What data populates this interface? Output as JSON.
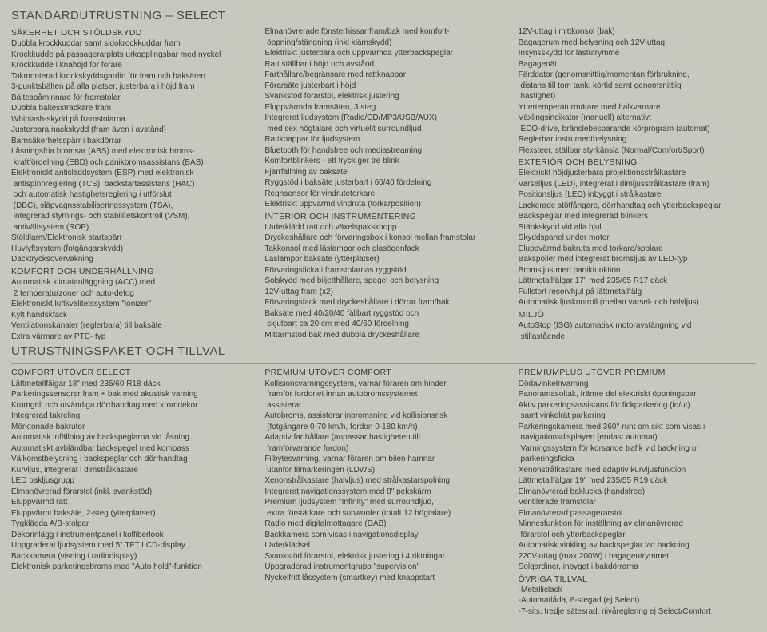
{
  "titles": {
    "main": "STANDARDUTRUSTNING – SELECT",
    "packages": "UTRUSTNINGSPAKET OCH TILLVAL"
  },
  "std": {
    "col1": {
      "h1": "SÄKERHET OCH STÖLDSKYDD",
      "i1": "Dubbla krockkuddar samt sidokrockkuddar fram",
      "i2": "Krockkudde på passagerarplats urkopplingsbar med nyckel",
      "i3": "Krockkudde i knähöjd för förare",
      "i4": "Takmonterad krockskyddsgardin för fram och baksäten",
      "i5": "3-punktsbälten på alla platser, justerbara i höjd fram",
      "i6": "Bältespåminnare för framstolar",
      "i7": "Dubbla bältessträckare fram",
      "i8": "Whiplash-skydd på framstolarna",
      "i9": "Justerbara nackskydd (fram även i avstånd)",
      "i10": "Barnsäkerhetsspärr i bakdörrar",
      "i11": "Låsningsfria bromsar (ABS) med elektronisk broms-\n kraftfördelning (EBD) och panikbromsassistans (BAS)",
      "i12": "Elektroniskt antisladdsystem (ESP) med elektronisk\n antispinnreglering (TCS), backstartassistans (HAC)\n och automatisk hastighetsreglering i utförslut\n (DBC), släpvagnsstabiliseringssystem (TSA),\n integrerad styrnings- och stabilitetskontroll (VSM),\n antivältsystem (ROP)",
      "i13": "Stöldlarm/Elektronisk startspärr",
      "i14": "Huvlyftsystem (fotgängarskydd)",
      "i15": "Däcktrycksövervakning",
      "h2": "KOMFORT OCH UNDERHÅLLNING",
      "i16": "Automatisk klimatanläggning (ACC) med\n 2 temperaturzoner och auto-defog",
      "i17": "Elektroniskt luftkvalitetssystem \"ionizer\"",
      "i18": "Kylt handskfack",
      "i19": "Ventilationskanaler (reglerbara) till baksäte",
      "i20": "Extra värmare av PTC- typ"
    },
    "col2": {
      "i1": "Elmanövrerade fönsterhissar fram/bak med komfort-\n öppning/stängning (inkl klämskydd)",
      "i2": "Elektriskt justerbara och uppvärmda ytterbackspeglar",
      "i3": "Ratt ställbar i höjd och avstånd",
      "i4": "Farthållare/begränsare med rattknappar",
      "i5": "Förarsäte justerbart i höjd",
      "i6": "Svankstöd förarstol, elektrisk justering",
      "i7": "Eluppvärmda framsäten, 3 steg",
      "i8": "Integrerat ljudsystem (Radio/CD/MP3/USB/AUX)\n med sex högtalare och virtuellt surroundljud",
      "i9": "Rattknappar för ljudsystem",
      "i10": "Bluetooth för handsfree och mediastreaming",
      "i11": "Komfortblinkers - ett tryck ger tre blink",
      "i12": "Fjärrfällning av baksäte",
      "i13": "Ryggstöd i baksäte justerbart i 60/40 fördelning",
      "i14": "Regnsensor för vindrutetorkare",
      "i15": "Elektriskt uppvärmd vindruta (torkarposition)",
      "h1": "INTERIÖR OCH INSTRUMENTERING",
      "i16": "Läderklädd ratt och växelspaksknopp",
      "i17": "Dryckeshållare och förvaringsbox i konsol mellan framstolar",
      "i18": "Takkonsol med läslampor och glasögonfack",
      "i19": "Läslampor baksäte (ytterplatser)",
      "i20": "Förvaringsficka i framstolarnas ryggstöd",
      "i21": "Solskydd med biljetthållare, spegel och belysning",
      "i22": "12V-uttag fram (x2)",
      "i23": "Förvaringsfack med dryckeshållare i dörrar fram/bak",
      "i24": "Baksäte med 40/20/40 fällbart ryggstöd och\n skjutbart ca 20 cm med 40/60 fördelning",
      "i25": "Mittarmstöd bak med dubbla dryckeshållare"
    },
    "col3": {
      "i1": "12V-uttag i mittkonsol (bak)",
      "i2": "Bagagerum med belysning och 12V-uttag",
      "i3": "Insynsskydd för lastutrymme",
      "i4": "Bagagenät",
      "i5": "Färddator (genomsnittlig/momentan förbrukning,\n distans till tom tank, körtid samt genomsnittlig\n hastighet)",
      "i6": "Yttertemperaturmätare med halkvarnare",
      "i7": "Växlingsindikator (manuell) alternativt\n ECO-drive, bränslebesparande körprogram (automat)",
      "i8": "Reglerbar instrumentbelysning",
      "i9": "Flexsteer, ställbar styrkänsla (Normal/Comfort/Sport)",
      "h1": "EXTERIÖR OCH BELYSNING",
      "i10": "Elektriskt höjdjusterbara projektionsstrålkastare",
      "i11": "Varselljus (LED), integrerat i dimljusstrålkastare (fram)",
      "i12": "Positionsljus (LED) inbyggt i strålkastare",
      "i13": "Lackerade stötfångare, dörrhandtag och ytterbackspeglar",
      "i14": "Backspeglar med integrerad blinkers",
      "i15": "Stänkskydd vid alla hjul",
      "i16": "Skyddspanel under motor",
      "i17": "Eluppvärmd bakruta med torkare/spolare",
      "i18": "Bakspoiler med integrerat bromsljus av LED-typ",
      "i19": "Bromsljus med panikfunktion",
      "i20": "Lättmetallfälgar 17\" med 235/65 R17 däck",
      "i21": "Fullstort reservhjul på lättmetallfälg",
      "i22": "Automatisk ljuskontroll (mellan varsel- och halvljus)",
      "h2": "MILJÖ",
      "i23": "AutoStop (ISG) automatisk motoravstängning vid\n stillastående"
    }
  },
  "pkg": {
    "col1": {
      "h1": "COMFORT UTÖVER SELECT",
      "i1": "Lättmetallfälgar 18\" med 235/60 R18 däck",
      "i2": "Parkeringssensorer fram + bak med akustisk varning",
      "i3": "Kromgrill och utvändiga dörrhandtag med kromdekor",
      "i4": "Integrerad takreling",
      "i5": "Mörktonade bakrutor",
      "i6": "Automatisk infällning av backspeglarna vid låsning",
      "i7": "Automatiskt avbländbar backspegel med kompass",
      "i8": "Välkomstbelysning i backspeglar och dörrhandtag",
      "i9": "Kurvljus, integrerat i dimstrålkastare",
      "i10": "LED bakljusgrupp",
      "i11": "Elmanövrerad förarstol (inkl. svankstöd)",
      "i12": "Eluppvärmd ratt",
      "i13": "Eluppvärmt baksäte, 2-steg (ytterplatser)",
      "i14": "Tygklädda A/B-stolpar",
      "i15": "Dekorinlägg i instrumentpanel i kolfiberlook",
      "i16": "Uppgraderat ljudsystem med 5\" TFT LCD-display",
      "i17": "Backkamera (visning i radiodisplay)",
      "i18": "Elektronisk parkeringsbroms med \"Auto hold\"-funktion"
    },
    "col2": {
      "h1": "PREMIUM UTÖVER COMFORT",
      "i1": "Kollisionsvarningssystem, varnar föraren om hinder\n framför fordonet innan autobromssystemet\n assisterar",
      "i2": "Autobroms, assisterar inbromsning vid kollisionsrisk\n (fotgängare 0-70 km/h, fordon 0-180 km/h)",
      "i3": "Adaptiv farthållare (anpassar hastigheten till\n framförvarande fordon)",
      "i4": "Filbytesvarning, varnar föraren om bilen hamnar\n utanför filmarkeringen (LDWS)",
      "i5": "Xenonstrålkastare (halvljus) med strålkastarspolning",
      "i6": "Integrerat navigationssystem med 8\" pekskärm",
      "i7": "Premium ljudsystem \"Infinity\" med surroundljud,\n extra förstärkare och subwoofer (totalt 12 högtalare)",
      "i8": "Radio med digitalmottagare (DAB)",
      "i9": "Backkamera som visas i navigationsdisplay",
      "i10": "Läderklädsel",
      "i11": "Svankstöd förarstol, elektrisk justering i 4 riktningar",
      "i12": "Uppgraderad instrumentgrupp \"supervision\"",
      "i13": "Nyckelfritt låssystem (smartkey) med knappstart"
    },
    "col3": {
      "h1": "PREMIUMPLUS UTÖVER PREMIUM",
      "i1": "Dödavinkelnvarning",
      "i2": "Panoramasoltak, främre del elektriskt öppningsbar",
      "i3": "Aktiv parkeringsassistans för fickparkering (in/ut)\n samt vinkelrät parkering",
      "i4": "Parkeringskamera med 360° runt om sikt som visas i\n navigationsdisplayen (endast automat)",
      "i5": " Varningssystem för korsande trafik vid backning ur\n parkeringsficka",
      "i6": "Xenonstrålkastare med adaptiv kurvljusfunktion",
      "i7": "Lättmetallfälgar 19\" med 235/55 R19 däck",
      "i8": "Elmanövrerad baklucka (handsfree)",
      "i9": "Ventilerade framstolar",
      "i10": "Elmanövrerad passagerarstol",
      "i11": "Minnesfunktion för inställning av elmanövrerad\n förarstol och ytterbackspeglar",
      "i12": "Automatisk vinkling av backspeglar vid backning",
      "i13": "220V-uttag (max 200W) i bagageutrymmet",
      "i14": "Solgardiner, inbyggt i bakdörrarna",
      "h2": "ÖVRIGA TILLVAL",
      "i15": "-Metalliclack",
      "i16": "-Automatlåda, 6-stegad (ej Select)",
      "i17": "-7-sits, tredje sätesrad, nivåreglering ej Select/Comfort"
    }
  }
}
